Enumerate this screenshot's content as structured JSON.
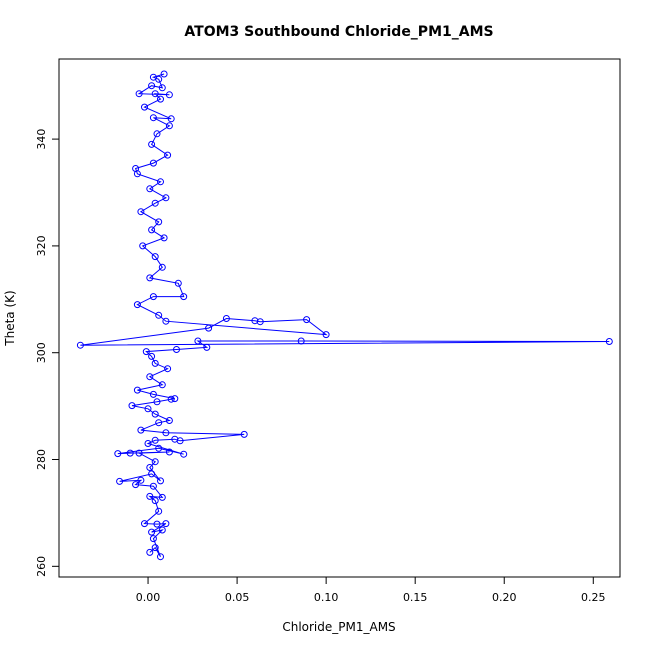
{
  "chart_data": {
    "type": "scatter",
    "title": "ATOM3 Southbound Chloride_PM1_AMS",
    "xlabel": "Chloride_PM1_AMS",
    "ylabel": "Theta (K)",
    "x_ticks": [
      0.0,
      0.05,
      0.1,
      0.15,
      0.2,
      0.25
    ],
    "x_tick_labels": [
      "0.00",
      "0.05",
      "0.10",
      "0.15",
      "0.20",
      "0.25"
    ],
    "y_ticks": [
      260,
      280,
      300,
      320,
      340
    ],
    "y_tick_labels": [
      "260",
      "280",
      "300",
      "320",
      "340"
    ],
    "xlim": [
      -0.05,
      0.265
    ],
    "ylim": [
      258,
      355
    ],
    "series_color": "#0000ff",
    "markers": "open-circle",
    "connected": true,
    "grid": false,
    "legend": "none",
    "series": [
      {
        "points": [
          [
            0.001,
            262.6
          ],
          [
            0.004,
            263.5
          ],
          [
            0.007,
            261.8
          ],
          [
            0.003,
            265.2
          ],
          [
            0.008,
            266.8
          ],
          [
            0.002,
            266.4
          ],
          [
            0.01,
            268.0
          ],
          [
            0.005,
            267.9
          ],
          [
            -0.002,
            268.0
          ],
          [
            0.006,
            270.3
          ],
          [
            0.004,
            272.3
          ],
          [
            0.001,
            273.1
          ],
          [
            0.008,
            272.9
          ],
          [
            0.003,
            275.0
          ],
          [
            -0.007,
            275.3
          ],
          [
            -0.004,
            276.1
          ],
          [
            -0.016,
            275.9
          ],
          [
            0.002,
            277.3
          ],
          [
            0.007,
            276.0
          ],
          [
            0.001,
            278.5
          ],
          [
            0.004,
            279.6
          ],
          [
            -0.005,
            281.2
          ],
          [
            0.012,
            281.4
          ],
          [
            -0.01,
            281.2
          ],
          [
            -0.017,
            281.1
          ],
          [
            0.006,
            282.1
          ],
          [
            0.02,
            281.0
          ],
          [
            0.0,
            283.0
          ],
          [
            0.004,
            283.6
          ],
          [
            0.015,
            283.8
          ],
          [
            0.018,
            283.5
          ],
          [
            0.054,
            284.7
          ],
          [
            0.01,
            285.0
          ],
          [
            -0.004,
            285.5
          ],
          [
            0.006,
            286.9
          ],
          [
            0.012,
            287.3
          ],
          [
            0.004,
            288.5
          ],
          [
            0.0,
            289.5
          ],
          [
            -0.009,
            290.1
          ],
          [
            0.005,
            290.8
          ],
          [
            0.013,
            291.3
          ],
          [
            0.015,
            291.4
          ],
          [
            0.003,
            292.2
          ],
          [
            -0.006,
            293.0
          ],
          [
            0.008,
            294.0
          ],
          [
            0.001,
            295.5
          ],
          [
            0.011,
            297.0
          ],
          [
            0.004,
            298.0
          ],
          [
            0.002,
            299.3
          ],
          [
            -0.001,
            300.2
          ],
          [
            0.016,
            300.6
          ],
          [
            0.033,
            301.0
          ],
          [
            0.028,
            302.2
          ],
          [
            0.086,
            302.2
          ],
          [
            0.259,
            302.1
          ],
          [
            -0.038,
            301.4
          ],
          [
            0.034,
            304.6
          ],
          [
            0.044,
            306.4
          ],
          [
            0.06,
            306.0
          ],
          [
            0.063,
            305.8
          ],
          [
            0.089,
            306.2
          ],
          [
            0.1,
            303.4
          ],
          [
            0.01,
            305.9
          ],
          [
            0.006,
            307.0
          ],
          [
            -0.006,
            309.0
          ],
          [
            0.003,
            310.5
          ],
          [
            0.02,
            310.5
          ],
          [
            0.017,
            313.0
          ],
          [
            0.001,
            314.0
          ],
          [
            0.008,
            316.0
          ],
          [
            0.004,
            318.0
          ],
          [
            -0.003,
            320.0
          ],
          [
            0.009,
            321.5
          ],
          [
            0.002,
            323.0
          ],
          [
            0.006,
            324.5
          ],
          [
            -0.004,
            326.4
          ],
          [
            0.004,
            328.0
          ],
          [
            0.01,
            329.0
          ],
          [
            0.001,
            330.7
          ],
          [
            0.007,
            332.0
          ],
          [
            -0.006,
            333.5
          ],
          [
            -0.007,
            334.5
          ],
          [
            0.003,
            335.5
          ],
          [
            0.011,
            337.0
          ],
          [
            0.002,
            339.0
          ],
          [
            0.005,
            341.0
          ],
          [
            0.012,
            342.5
          ],
          [
            0.003,
            344.0
          ],
          [
            0.013,
            343.8
          ],
          [
            -0.002,
            346.0
          ],
          [
            0.007,
            347.5
          ],
          [
            0.004,
            348.5
          ],
          [
            0.012,
            348.3
          ],
          [
            -0.005,
            348.5
          ],
          [
            0.002,
            350.0
          ],
          [
            0.008,
            349.6
          ],
          [
            0.006,
            351.2
          ],
          [
            0.003,
            351.6
          ],
          [
            0.009,
            352.2
          ]
        ]
      }
    ]
  }
}
